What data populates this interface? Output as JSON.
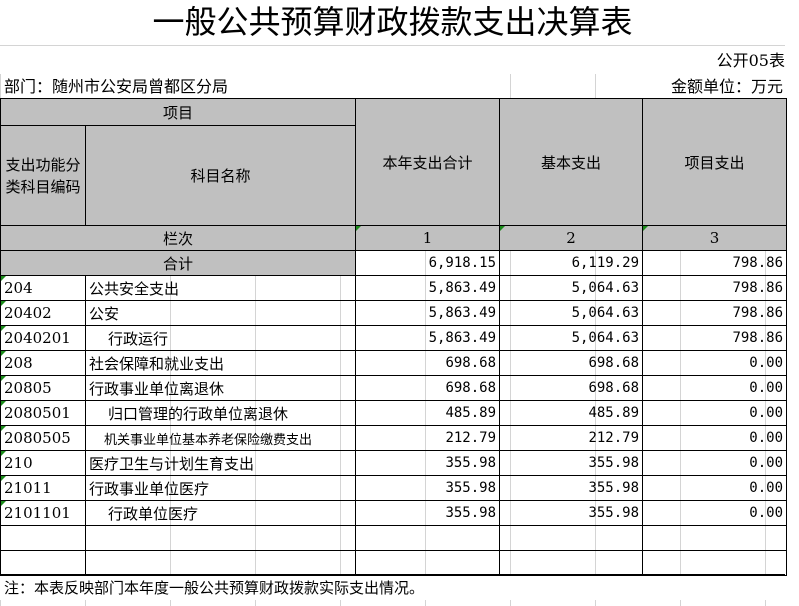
{
  "title": "一般公共预算财政拨款支出决算表",
  "form_no": "公开05表",
  "department": "部门：随州市公安局曾都区分局",
  "unit": "金额单位：万元",
  "headers": {
    "project": "项目",
    "code": "支出功能分类科目编码",
    "name": "科目名称",
    "total": "本年支出合计",
    "basic": "基本支出",
    "item": "项目支出",
    "column_no": "栏次",
    "col1": "1",
    "col2": "2",
    "col3": "3",
    "sum": "合计"
  },
  "summary": {
    "total": "6,918.15",
    "basic": "6,119.29",
    "item": "798.86"
  },
  "rows": [
    {
      "code": "204",
      "name": "公共安全支出",
      "total": "5,863.49",
      "basic": "5,064.63",
      "item": "798.86",
      "level": 1
    },
    {
      "code": "20402",
      "name": "公安",
      "total": "5,863.49",
      "basic": "5,064.63",
      "item": "798.86",
      "level": 2
    },
    {
      "code": "2040201",
      "name": "行政运行",
      "total": "5,863.49",
      "basic": "5,064.63",
      "item": "798.86",
      "level": 3
    },
    {
      "code": "208",
      "name": "社会保障和就业支出",
      "total": "698.68",
      "basic": "698.68",
      "item": "0.00",
      "level": 1
    },
    {
      "code": "20805",
      "name": "行政事业单位离退休",
      "total": "698.68",
      "basic": "698.68",
      "item": "0.00",
      "level": 2
    },
    {
      "code": "2080501",
      "name": "归口管理的行政单位离退休",
      "total": "485.89",
      "basic": "485.89",
      "item": "0.00",
      "level": 3
    },
    {
      "code": "2080505",
      "name": "机关事业单位基本养老保险缴费支出",
      "total": "212.79",
      "basic": "212.79",
      "item": "0.00",
      "level": 4
    },
    {
      "code": "210",
      "name": "医疗卫生与计划生育支出",
      "total": "355.98",
      "basic": "355.98",
      "item": "0.00",
      "level": 1
    },
    {
      "code": "21011",
      "name": "行政事业单位医疗",
      "total": "355.98",
      "basic": "355.98",
      "item": "0.00",
      "level": 2
    },
    {
      "code": "2101101",
      "name": "行政单位医疗",
      "total": "355.98",
      "basic": "355.98",
      "item": "0.00",
      "level": 3
    }
  ],
  "note": "注：本表反映部门本年度一般公共预算财政拨款实际支出情况。"
}
